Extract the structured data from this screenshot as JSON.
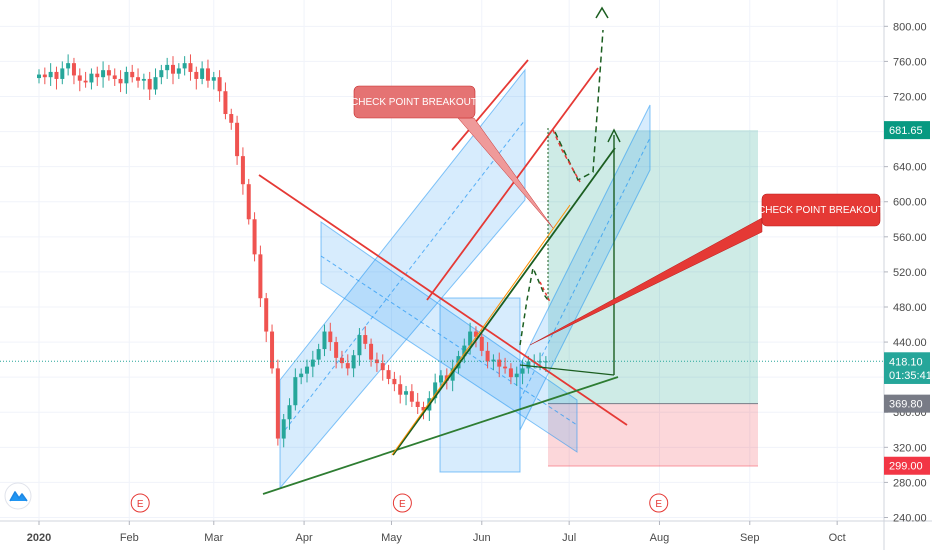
{
  "chart_data": {
    "type": "line",
    "title": "",
    "y_axis": {
      "min": 236,
      "max": 830,
      "ticks": [
        240,
        280,
        320,
        360,
        400,
        440,
        480,
        520,
        560,
        600,
        640,
        680,
        720,
        760,
        800
      ],
      "tick_labels": [
        "240.00",
        "280.00",
        "320.00",
        "360.00",
        "400.00",
        "440.00",
        "480.00",
        "520.00",
        "560.00",
        "600.00",
        "640.00",
        "680.00",
        "720.00",
        "760.00",
        "800.00"
      ]
    },
    "x_axis": {
      "labels": [
        "2020",
        "Feb",
        "Mar",
        "Apr",
        "May",
        "Jun",
        "Jul",
        "Aug",
        "Sep",
        "Oct"
      ],
      "label_days": [
        0,
        31,
        60,
        91,
        121,
        152,
        182,
        213,
        244,
        274
      ]
    },
    "price_tags": [
      {
        "name": "target",
        "value": 681.65,
        "label": "681.65",
        "color": "#089981"
      },
      {
        "name": "last-price",
        "value": 418.1,
        "label": "418.10",
        "color": "#26a69a"
      },
      {
        "name": "countdown",
        "value": 402.5,
        "label": "01:35:41",
        "color": "#26a69a"
      },
      {
        "name": "entry",
        "value": 369.8,
        "label": "369.80",
        "color": "#787b86"
      },
      {
        "name": "stop",
        "value": 299.0,
        "label": "299.00",
        "color": "#f23645"
      }
    ],
    "last_price": 418.1,
    "close_series": {
      "x": [
        0,
        2,
        4,
        6,
        8,
        10,
        12,
        14,
        16,
        18,
        20,
        22,
        24,
        26,
        28,
        30,
        32,
        34,
        36,
        38,
        40,
        42,
        44,
        46,
        48,
        50,
        52,
        54,
        56,
        58,
        60,
        62,
        64,
        66,
        68,
        70,
        72,
        74,
        76,
        78,
        80,
        82,
        84,
        86,
        88,
        90,
        92,
        94,
        96,
        98,
        100,
        102,
        104,
        106,
        108,
        110,
        112,
        114,
        116,
        118,
        120,
        122,
        124,
        126,
        128,
        130,
        132,
        134,
        136,
        138,
        140,
        142,
        144,
        146,
        148,
        150,
        152,
        154,
        156,
        158,
        160,
        162,
        164,
        166,
        168,
        170,
        172,
        174
      ],
      "y": [
        745,
        742,
        748,
        740,
        752,
        758,
        744,
        738,
        736,
        746,
        742,
        750,
        744,
        740,
        735,
        748,
        742,
        738,
        740,
        728,
        742,
        750,
        756,
        746,
        752,
        758,
        748,
        740,
        752,
        738,
        742,
        726,
        700,
        690,
        652,
        620,
        580,
        540,
        490,
        452,
        410,
        330,
        352,
        368,
        400,
        404,
        412,
        420,
        432,
        452,
        440,
        422,
        416,
        410,
        425,
        448,
        438,
        420,
        416,
        408,
        398,
        392,
        380,
        384,
        372,
        366,
        362,
        376,
        394,
        402,
        396,
        410,
        424,
        436,
        452,
        446,
        430,
        418,
        420,
        412,
        410,
        400,
        404,
        410,
        418,
        418,
        418,
        418
      ]
    },
    "earnings_markers": [
      {
        "day": 32,
        "label": "E"
      },
      {
        "day": 122,
        "label": "E"
      },
      {
        "day": 210,
        "label": "E"
      }
    ],
    "annotations": [
      {
        "text": "CHECK POINT BREAKOUT",
        "color": "#e57373"
      },
      {
        "text": "CHECK POINT BREAKOUT",
        "color": "#e53935"
      }
    ],
    "position": {
      "entry": 369.8,
      "target": 681.65,
      "stop": 299.0
    },
    "grid": true
  }
}
